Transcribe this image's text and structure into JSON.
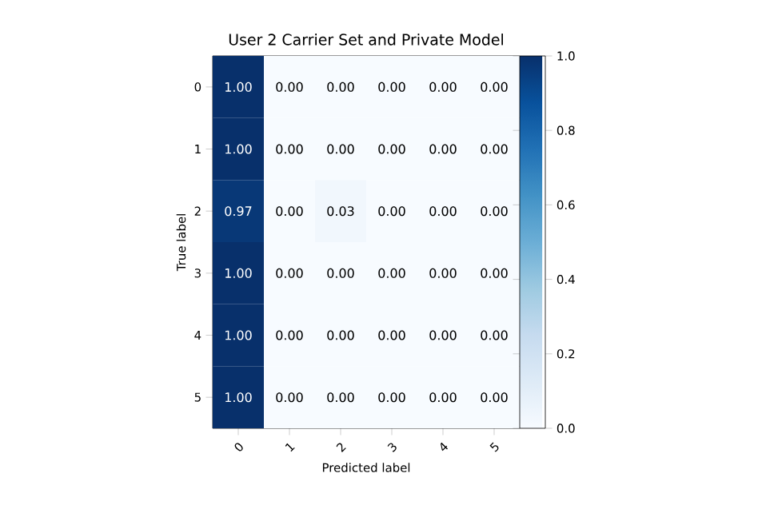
{
  "chart_data": {
    "type": "heatmap",
    "title": "User 2 Carrier Set and Private Model",
    "xlabel": "Predicted label",
    "ylabel": "True label",
    "categories": [
      "0",
      "1",
      "2",
      "3",
      "4",
      "5"
    ],
    "y_categories": [
      "0",
      "1",
      "2",
      "3",
      "4",
      "5"
    ],
    "cells": [
      [
        1.0,
        0.0,
        0.0,
        0.0,
        0.0,
        0.0
      ],
      [
        1.0,
        0.0,
        0.0,
        0.0,
        0.0,
        0.0
      ],
      [
        0.97,
        0.0,
        0.03,
        0.0,
        0.0,
        0.0
      ],
      [
        1.0,
        0.0,
        0.0,
        0.0,
        0.0,
        0.0
      ],
      [
        1.0,
        0.0,
        0.0,
        0.0,
        0.0,
        0.0
      ],
      [
        1.0,
        0.0,
        0.0,
        0.0,
        0.0,
        0.0
      ]
    ],
    "cell_labels": [
      [
        "1.00",
        "0.00",
        "0.00",
        "0.00",
        "0.00",
        "0.00"
      ],
      [
        "1.00",
        "0.00",
        "0.00",
        "0.00",
        "0.00",
        "0.00"
      ],
      [
        "0.97",
        "0.00",
        "0.03",
        "0.00",
        "0.00",
        "0.00"
      ],
      [
        "1.00",
        "0.00",
        "0.00",
        "0.00",
        "0.00",
        "0.00"
      ],
      [
        "1.00",
        "0.00",
        "0.00",
        "0.00",
        "0.00",
        "0.00"
      ],
      [
        "1.00",
        "0.00",
        "0.00",
        "0.00",
        "0.00",
        "0.00"
      ]
    ],
    "clim": [
      0,
      1
    ],
    "cticks": [
      {
        "value": 0,
        "label": "0.0"
      },
      {
        "value": 0.2,
        "label": "0.2"
      },
      {
        "value": 0.4,
        "label": "0.4"
      },
      {
        "value": 0.6,
        "label": "0.6"
      },
      {
        "value": 0.8,
        "label": "0.8"
      },
      {
        "value": 1,
        "label": "1.0"
      }
    ]
  }
}
